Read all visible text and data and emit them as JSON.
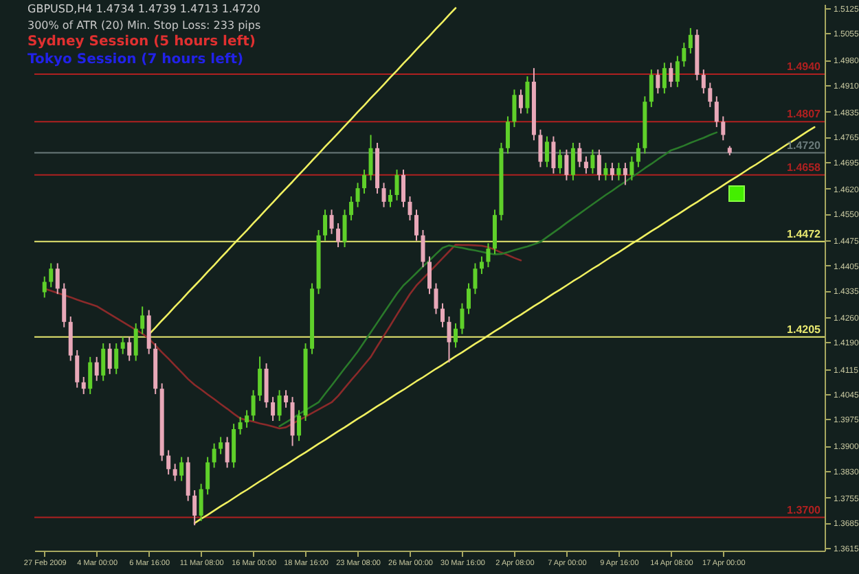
{
  "chart_data": {
    "type": "candlestick",
    "title": "GBPUSD,H4 1.4734 1.4739 1.4713 1.4720",
    "annotations": [
      "300% of ATR (20)   Min. Stop Loss: 233 pips",
      "Sydney Session (5 hours left)",
      "Tokyo Session (7 hours left)"
    ],
    "categories": [
      "27 Feb 2009",
      null,
      null,
      null,
      null,
      null,
      null,
      null,
      "4 Mar 00:00",
      null,
      null,
      null,
      null,
      null,
      null,
      null,
      "6 Mar 16:00",
      null,
      null,
      null,
      null,
      null,
      null,
      null,
      "11 Mar 08:00",
      null,
      null,
      null,
      null,
      null,
      null,
      null,
      "16 Mar 00:00",
      null,
      null,
      null,
      null,
      null,
      null,
      null,
      "18 Mar 16:00",
      null,
      null,
      null,
      null,
      null,
      null,
      null,
      "23 Mar 08:00",
      null,
      null,
      null,
      null,
      null,
      null,
      null,
      "26 Mar 00:00",
      null,
      null,
      null,
      null,
      null,
      null,
      null,
      "30 Mar 16:00",
      null,
      null,
      null,
      null,
      null,
      null,
      null,
      "2 Apr 08:00",
      null,
      null,
      null,
      null,
      null,
      null,
      null,
      "7 Apr 00:00",
      null,
      null,
      null,
      null,
      null,
      null,
      null,
      "9 Apr 16:00",
      null,
      null,
      null,
      null,
      null,
      null,
      null,
      "14 Apr 08:00",
      null,
      null,
      null,
      null,
      null,
      null,
      null,
      "17 Apr 00:00",
      null,
      null,
      null,
      null,
      null,
      null,
      null,
      null,
      null,
      null,
      null,
      null,
      null,
      null
    ],
    "ylim": [
      1.3607,
      1.5136
    ],
    "yticks": [
      1.5125,
      1.5055,
      {
        "value": 1.498,
        "label": "1.4980"
      },
      {
        "value": 1.491,
        "label": "1.4910"
      },
      1.4835,
      1.4765,
      1.4695,
      {
        "value": 1.462,
        "label": "1.4620"
      },
      {
        "value": 1.455,
        "label": "1.4550"
      },
      1.4475,
      1.4405,
      1.4335,
      {
        "value": 1.426,
        "label": "1.4260"
      },
      {
        "value": 1.419,
        "label": "1.4190"
      },
      1.4115,
      1.4045,
      1.3975,
      {
        "value": 1.39,
        "label": "1.3900"
      },
      {
        "value": 1.383,
        "label": "1.3830"
      },
      1.3755,
      1.3685,
      1.3615
    ],
    "grid": false,
    "ref_lines": [
      {
        "axis": "y",
        "value": 1.494,
        "label": "1.4940",
        "color": "#b02020"
      },
      {
        "axis": "y",
        "value": 1.4807,
        "label": "1.4807",
        "color": "#b02020"
      },
      {
        "axis": "y",
        "value": 1.472,
        "label": "1.4720",
        "color": "#6a7a7a"
      },
      {
        "axis": "y",
        "value": 1.4658,
        "label": "1.4658",
        "color": "#b02020"
      },
      {
        "axis": "y",
        "value": 1.4472,
        "label": "1.4472",
        "color": "#e8e870"
      },
      {
        "axis": "y",
        "value": 1.4205,
        "label": "1.4205",
        "color": "#e8e870"
      },
      {
        "axis": "y",
        "value": 1.37,
        "label": "1.3700",
        "color": "#b02020"
      }
    ],
    "series": [
      {
        "type": "line",
        "color": "#8b2a2a",
        "values": [
          1.434,
          1.4334,
          1.4328,
          1.4322,
          1.4316,
          1.4309,
          1.4303,
          1.4297,
          1.4291,
          1.428,
          1.4269,
          1.4258,
          1.4247,
          1.4236,
          1.4225,
          1.4214,
          1.42,
          1.4181,
          1.4162,
          1.4144,
          1.4125,
          1.4106,
          1.4087,
          1.4071,
          1.4058,
          1.4044,
          1.4031,
          1.4017,
          1.4004,
          1.399,
          1.3977,
          1.3972,
          1.3968,
          1.3963,
          1.3959,
          1.3954,
          1.3949,
          1.3952,
          1.3962,
          1.3972,
          1.3982,
          1.3992,
          1.4002,
          1.4012,
          1.4022,
          1.404,
          1.4062,
          1.4084,
          1.4105,
          1.4127,
          1.4149,
          1.4179,
          1.4208,
          1.4237,
          1.4267,
          1.4296,
          1.4325,
          1.4349,
          1.4368,
          1.4387,
          1.4406,
          1.4425,
          1.4444,
          1.4463,
          1.4462,
          1.4462,
          1.4461,
          1.446,
          1.4456,
          1.4449,
          1.4441,
          1.4434,
          1.4426,
          1.4419,
          null,
          null,
          null,
          null,
          null,
          null,
          null,
          null,
          null,
          null,
          null,
          null,
          null,
          null,
          null,
          null,
          null,
          null,
          null,
          null,
          null,
          null,
          null,
          null,
          null,
          null,
          null,
          null,
          null,
          null,
          null,
          null,
          null,
          null,
          null,
          null,
          null,
          null,
          null,
          null,
          null,
          null,
          null,
          null,
          null
        ]
      },
      {
        "type": "line",
        "color": "#2a7a2a",
        "values": [
          null,
          null,
          null,
          null,
          null,
          null,
          null,
          null,
          null,
          null,
          null,
          null,
          null,
          null,
          null,
          null,
          null,
          null,
          null,
          null,
          null,
          null,
          null,
          null,
          null,
          null,
          null,
          null,
          null,
          null,
          null,
          null,
          null,
          null,
          null,
          null,
          1.3955,
          1.3966,
          1.3977,
          1.3989,
          1.4,
          1.4011,
          1.4022,
          1.4046,
          1.4069,
          1.4093,
          1.4117,
          1.414,
          1.4164,
          1.4191,
          1.4218,
          1.4245,
          1.4272,
          1.4299,
          1.4326,
          1.4349,
          1.4366,
          1.4384,
          1.4402,
          1.4419,
          1.4437,
          1.4454,
          1.4461,
          1.4457,
          1.4454,
          1.445,
          1.4447,
          1.4443,
          1.4439,
          1.4436,
          1.4437,
          1.4442,
          1.4448,
          1.4453,
          1.4458,
          1.4464,
          1.4471,
          1.4484,
          1.4497,
          1.451,
          1.4524,
          1.4537,
          1.455,
          1.4563,
          1.4576,
          1.4589,
          1.4602,
          1.4614,
          1.4627,
          1.4639,
          1.4652,
          1.4664,
          1.4677,
          1.4689,
          1.4702,
          1.4714,
          1.4727,
          1.4733,
          1.474,
          1.4748,
          1.4755,
          1.4762,
          1.477,
          1.4777,
          null,
          null,
          null,
          null,
          null,
          null,
          null,
          null,
          null,
          null,
          null,
          null,
          null,
          null,
          null
        ]
      },
      {
        "type": "line",
        "color": "#f0f060",
        "values": [
          null,
          null,
          null,
          null,
          null,
          null,
          null,
          null,
          null,
          null,
          null,
          null,
          null,
          null,
          null,
          null,
          1.4212,
          1.4231,
          1.4251,
          1.427,
          1.429,
          1.4309,
          1.4329,
          1.4348,
          1.4367,
          1.4387,
          1.4406,
          1.4426,
          1.4445,
          1.4465,
          1.4484,
          1.4503,
          1.4523,
          1.4542,
          1.4562,
          1.4581,
          1.4601,
          1.462,
          1.4639,
          1.4659,
          1.4678,
          1.4698,
          1.4717,
          1.4737,
          1.4756,
          1.4775,
          1.4795,
          1.4814,
          1.4834,
          1.4853,
          1.4873,
          1.4892,
          1.4911,
          1.4931,
          1.495,
          1.497,
          1.4989,
          1.5009,
          1.5028,
          1.5047,
          1.5067,
          1.5086,
          1.5106,
          1.5125,
          null,
          null,
          null,
          null,
          null,
          null,
          null,
          null,
          null,
          null,
          null,
          null,
          null,
          null,
          null,
          null,
          null,
          null,
          null,
          null,
          null,
          null,
          null,
          null,
          null,
          null,
          null,
          null,
          null,
          null,
          null,
          null,
          null,
          null,
          null,
          null,
          null,
          null,
          null,
          null,
          null,
          null,
          null,
          null,
          null,
          null,
          null,
          null,
          null,
          null,
          null,
          null,
          null,
          null,
          null
        ]
      },
      {
        "type": "line",
        "color": "#f0f060",
        "values": [
          null,
          null,
          null,
          null,
          null,
          null,
          null,
          null,
          null,
          null,
          null,
          null,
          null,
          null,
          null,
          null,
          null,
          null,
          null,
          null,
          null,
          null,
          null,
          1.3684,
          1.3696,
          1.3707,
          1.3719,
          1.3731,
          1.3742,
          1.3754,
          1.3766,
          1.3777,
          1.3789,
          1.3801,
          1.3812,
          1.3824,
          1.3836,
          1.3847,
          1.3859,
          1.3871,
          1.3882,
          1.3894,
          1.3906,
          1.3917,
          1.3929,
          1.3941,
          1.3952,
          1.3964,
          1.3976,
          1.3987,
          1.3999,
          1.4011,
          1.4022,
          1.4034,
          1.4046,
          1.4057,
          1.4069,
          1.4081,
          1.4092,
          1.4104,
          1.4116,
          1.4127,
          1.4139,
          1.4151,
          1.4162,
          1.4174,
          1.4186,
          1.4197,
          1.4209,
          1.4221,
          1.4232,
          1.4244,
          1.4256,
          1.4267,
          1.4279,
          1.4291,
          1.4302,
          1.4314,
          1.4326,
          1.4337,
          1.4349,
          1.4361,
          1.4372,
          1.4384,
          1.4396,
          1.4407,
          1.4419,
          1.4431,
          1.4442,
          1.4454,
          1.4466,
          1.4477,
          1.4489,
          1.4501,
          1.4512,
          1.4524,
          1.4536,
          1.4547,
          1.4559,
          1.4571,
          1.4582,
          1.4594,
          1.4606,
          1.4617,
          1.4629,
          1.4641,
          1.4652,
          1.4664,
          1.4676,
          1.4687,
          1.4699,
          1.4711,
          1.4722,
          1.4734,
          1.4746,
          1.4757,
          1.4769,
          1.4781,
          1.4792
        ]
      },
      {
        "colors": [
          "#5fd02a",
          "#5fd02a",
          "#e8a8b8",
          "#e8a8b8",
          "#e8a8b8",
          "#e8a8b8",
          "#e8a8b8",
          "#5fd02a",
          "#e8a8b8",
          "#5fd02a",
          "#e8a8b8",
          "#5fd02a",
          "#5fd02a",
          "#e8a8b8",
          "#5fd02a",
          "#5fd02a",
          "#e8a8b8",
          "#e8a8b8",
          "#e8a8b8",
          "#e8a8b8",
          "#e8a8b8",
          "#5fd02a",
          "#e8a8b8",
          "#e8a8b8",
          "#5fd02a",
          "#5fd02a",
          "#5fd02a",
          "#5fd02a",
          "#e8a8b8",
          "#5fd02a",
          "#5fd02a",
          "#5fd02a",
          "#5fd02a",
          "#5fd02a",
          "#e8a8b8",
          "#e8a8b8",
          "#5fd02a",
          "#e8a8b8",
          "#e8a8b8",
          "#5fd02a",
          "#5fd02a",
          "#5fd02a",
          "#5fd02a",
          "#5fd02a",
          "#e8a8b8",
          "#e8a8b8",
          "#5fd02a",
          "#5fd02a",
          "#5fd02a",
          "#5fd02a",
          "#5fd02a",
          "#e8a8b8",
          "#e8a8b8",
          "#5fd02a",
          "#5fd02a",
          "#e8a8b8",
          "#e8a8b8",
          "#e8a8b8",
          "#e8a8b8",
          "#e8a8b8",
          "#e8a8b8",
          "#e8a8b8",
          "#e8a8b8",
          "#5fd02a",
          "#5fd02a",
          "#5fd02a",
          "#5fd02a",
          "#5fd02a",
          "#5fd02a",
          "#5fd02a",
          "#5fd02a",
          "#5fd02a",
          "#5fd02a",
          "#e8a8b8",
          "#5fd02a",
          "#e8a8b8",
          "#e8a8b8",
          "#5fd02a",
          "#e8a8b8",
          "#5fd02a",
          "#e8a8b8",
          "#5fd02a",
          "#e8a8b8",
          "#e8a8b8",
          "#5fd02a",
          "#e8a8b8",
          "#5fd02a",
          "#e8a8b8",
          "#5fd02a",
          "#e8a8b8",
          "#5fd02a",
          "#5fd02a",
          "#5fd02a",
          "#5fd02a",
          "#e8a8b8",
          "#5fd02a",
          "#e8a8b8",
          "#5fd02a",
          "#5fd02a",
          "#5fd02a",
          "#e8a8b8",
          "#e8a8b8",
          "#e8a8b8",
          "#e8a8b8",
          "#e8a8b8",
          "#e8a8b8",
          null,
          null,
          null,
          null,
          null,
          null,
          null,
          null,
          null,
          null,
          null,
          null,
          null
        ],
        "ohlc": [
          [
            1.433,
            1.4374,
            1.4315,
            1.4359
          ],
          [
            1.4359,
            1.4411,
            1.4344,
            1.4396
          ],
          [
            1.4396,
            1.4411,
            1.4325,
            1.434
          ],
          [
            1.434,
            1.4355,
            1.4232,
            1.4247
          ],
          [
            1.4247,
            1.4262,
            1.4138,
            1.4153
          ],
          [
            1.4153,
            1.4168,
            1.4063,
            1.4078
          ],
          [
            1.4078,
            1.4093,
            1.4045,
            1.406
          ],
          [
            1.406,
            1.4149,
            1.4045,
            1.4134
          ],
          [
            1.4134,
            1.4149,
            1.4082,
            1.4097
          ],
          [
            1.4097,
            1.4187,
            1.4082,
            1.4172
          ],
          [
            1.4172,
            1.4187,
            1.4101,
            1.4116
          ],
          [
            1.4116,
            1.4187,
            1.4101,
            1.4172
          ],
          [
            1.4172,
            1.4205,
            1.4157,
            1.419
          ],
          [
            1.419,
            1.4205,
            1.4138,
            1.4153
          ],
          [
            1.4153,
            1.4243,
            1.4138,
            1.4228
          ],
          [
            1.4228,
            1.429,
            1.4213,
            1.4265
          ],
          [
            1.4265,
            1.428,
            1.4157,
            1.4172
          ],
          [
            1.4172,
            1.4187,
            1.4045,
            1.406
          ],
          [
            1.406,
            1.4075,
            1.3858,
            1.3873
          ],
          [
            1.3873,
            1.3888,
            1.382,
            1.3835
          ],
          [
            1.3835,
            1.385,
            1.3802,
            1.3817
          ],
          [
            1.3817,
            1.3869,
            1.3802,
            1.3854
          ],
          [
            1.3854,
            1.3869,
            1.3746,
            1.3761
          ],
          [
            1.3761,
            1.3776,
            1.3678,
            1.3705
          ],
          [
            1.3705,
            1.3794,
            1.369,
            1.3779
          ],
          [
            1.3779,
            1.3869,
            1.3764,
            1.3854
          ],
          [
            1.3854,
            1.3907,
            1.3839,
            1.3892
          ],
          [
            1.3892,
            1.3925,
            1.3877,
            1.391
          ],
          [
            1.391,
            1.3925,
            1.3839,
            1.3854
          ],
          [
            1.3854,
            1.3962,
            1.3839,
            1.3947
          ],
          [
            1.3947,
            1.3981,
            1.3932,
            1.3966
          ],
          [
            1.3966,
            1.4,
            1.3951,
            1.3985
          ],
          [
            1.3985,
            1.4056,
            1.397,
            1.4041
          ],
          [
            1.4041,
            1.415,
            1.4026,
            1.4116
          ],
          [
            1.4116,
            1.4131,
            1.4007,
            1.4022
          ],
          [
            1.4022,
            1.4037,
            1.397,
            1.3985
          ],
          [
            1.3985,
            1.4056,
            1.397,
            1.4041
          ],
          [
            1.4041,
            1.4056,
            1.4007,
            1.4022
          ],
          [
            1.4022,
            1.4037,
            1.39,
            1.3929
          ],
          [
            1.3929,
            1.4,
            1.3914,
            1.3985
          ],
          [
            1.3985,
            1.4187,
            1.397,
            1.4172
          ],
          [
            1.4172,
            1.4355,
            1.4157,
            1.434
          ],
          [
            1.434,
            1.4504,
            1.4325,
            1.4489
          ],
          [
            1.4489,
            1.4561,
            1.4474,
            1.4546
          ],
          [
            1.4546,
            1.4561,
            1.4493,
            1.4508
          ],
          [
            1.4508,
            1.4523,
            1.4456,
            1.4471
          ],
          [
            1.4471,
            1.4561,
            1.4456,
            1.4546
          ],
          [
            1.4546,
            1.4598,
            1.4531,
            1.4583
          ],
          [
            1.4583,
            1.4636,
            1.4568,
            1.4621
          ],
          [
            1.4621,
            1.4673,
            1.4606,
            1.4658
          ],
          [
            1.4658,
            1.477,
            1.4643,
            1.4733
          ],
          [
            1.4733,
            1.4748,
            1.4606,
            1.4621
          ],
          [
            1.4621,
            1.4636,
            1.4568,
            1.4583
          ],
          [
            1.4583,
            1.4617,
            1.4568,
            1.4602
          ],
          [
            1.4602,
            1.4673,
            1.4587,
            1.4658
          ],
          [
            1.4658,
            1.4673,
            1.4568,
            1.4583
          ],
          [
            1.4583,
            1.4598,
            1.4531,
            1.4546
          ],
          [
            1.4546,
            1.4561,
            1.4474,
            1.4489
          ],
          [
            1.4489,
            1.4504,
            1.44,
            1.4415
          ],
          [
            1.4415,
            1.443,
            1.4325,
            1.434
          ],
          [
            1.434,
            1.4355,
            1.4269,
            1.4284
          ],
          [
            1.4284,
            1.4299,
            1.4232,
            1.4247
          ],
          [
            1.4247,
            1.4262,
            1.4134,
            1.419
          ],
          [
            1.419,
            1.4243,
            1.4175,
            1.4228
          ],
          [
            1.4228,
            1.4299,
            1.4213,
            1.4284
          ],
          [
            1.4284,
            1.4355,
            1.4269,
            1.434
          ],
          [
            1.434,
            1.4411,
            1.4325,
            1.4396
          ],
          [
            1.4396,
            1.443,
            1.4381,
            1.4415
          ],
          [
            1.4415,
            1.4467,
            1.44,
            1.4452
          ],
          [
            1.4452,
            1.4561,
            1.4437,
            1.4546
          ],
          [
            1.4546,
            1.4748,
            1.4531,
            1.4733
          ],
          [
            1.4733,
            1.4822,
            1.4718,
            1.4807
          ],
          [
            1.4807,
            1.4897,
            1.4792,
            1.4882
          ],
          [
            1.4882,
            1.4897,
            1.483,
            1.4845
          ],
          [
            1.4845,
            1.4934,
            1.483,
            1.4919
          ],
          [
            1.4919,
            1.4957,
            1.4755,
            1.477
          ],
          [
            1.477,
            1.4785,
            1.468,
            1.4695
          ],
          [
            1.4695,
            1.4766,
            1.468,
            1.4751
          ],
          [
            1.4751,
            1.4766,
            1.4662,
            1.4677
          ],
          [
            1.4677,
            1.4729,
            1.4662,
            1.4714
          ],
          [
            1.4714,
            1.4729,
            1.4643,
            1.4658
          ],
          [
            1.4658,
            1.4748,
            1.4643,
            1.4733
          ],
          [
            1.4733,
            1.4748,
            1.468,
            1.4695
          ],
          [
            1.4695,
            1.471,
            1.4662,
            1.4677
          ],
          [
            1.4677,
            1.4729,
            1.4662,
            1.4714
          ],
          [
            1.4714,
            1.4729,
            1.4643,
            1.4658
          ],
          [
            1.4658,
            1.4692,
            1.4643,
            1.4677
          ],
          [
            1.4677,
            1.4692,
            1.4643,
            1.4658
          ],
          [
            1.4658,
            1.4692,
            1.4643,
            1.4677
          ],
          [
            1.4677,
            1.4692,
            1.463,
            1.4658
          ],
          [
            1.4658,
            1.471,
            1.4643,
            1.4695
          ],
          [
            1.4695,
            1.4748,
            1.468,
            1.4733
          ],
          [
            1.4733,
            1.4878,
            1.4718,
            1.4863
          ],
          [
            1.4863,
            1.4953,
            1.4848,
            1.4938
          ],
          [
            1.4938,
            1.4953,
            1.4886,
            1.4901
          ],
          [
            1.4901,
            1.4972,
            1.4886,
            1.4957
          ],
          [
            1.4957,
            1.4972,
            1.4904,
            1.4919
          ],
          [
            1.4919,
            1.4991,
            1.4904,
            1.4976
          ],
          [
            1.4976,
            1.5028,
            1.4961,
            1.5013
          ],
          [
            1.5013,
            1.5069,
            1.4998,
            1.505
          ],
          [
            1.505,
            1.5065,
            1.4923,
            1.4938
          ],
          [
            1.4938,
            1.4953,
            1.4886,
            1.4901
          ],
          [
            1.4901,
            1.4916,
            1.4848,
            1.4863
          ],
          [
            1.4863,
            1.4878,
            1.4792,
            1.4807
          ],
          [
            1.4807,
            1.4822,
            1.4755,
            1.477
          ],
          [
            1.4734,
            1.4739,
            1.4713,
            1.472
          ],
          null,
          null,
          null,
          null,
          null,
          null,
          null,
          null,
          null,
          null,
          null,
          null,
          null
        ]
      }
    ]
  }
}
